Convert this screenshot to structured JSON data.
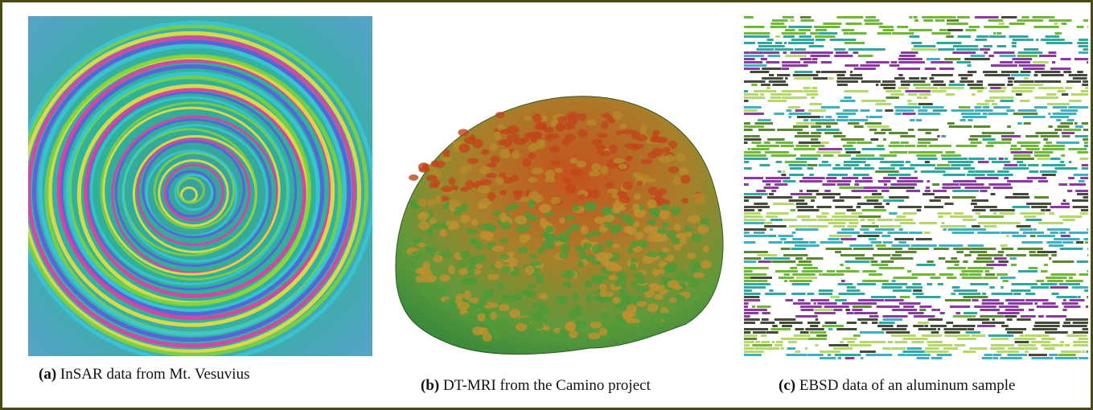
{
  "figure": {
    "panels": [
      {
        "label": "(a)",
        "caption": "InSAR data from Mt. Vesuvius"
      },
      {
        "label": "(b)",
        "caption": "DT-MRI from the Camino project"
      },
      {
        "label": "(c)",
        "caption": "EBSD data of an aluminum sample"
      }
    ]
  }
}
